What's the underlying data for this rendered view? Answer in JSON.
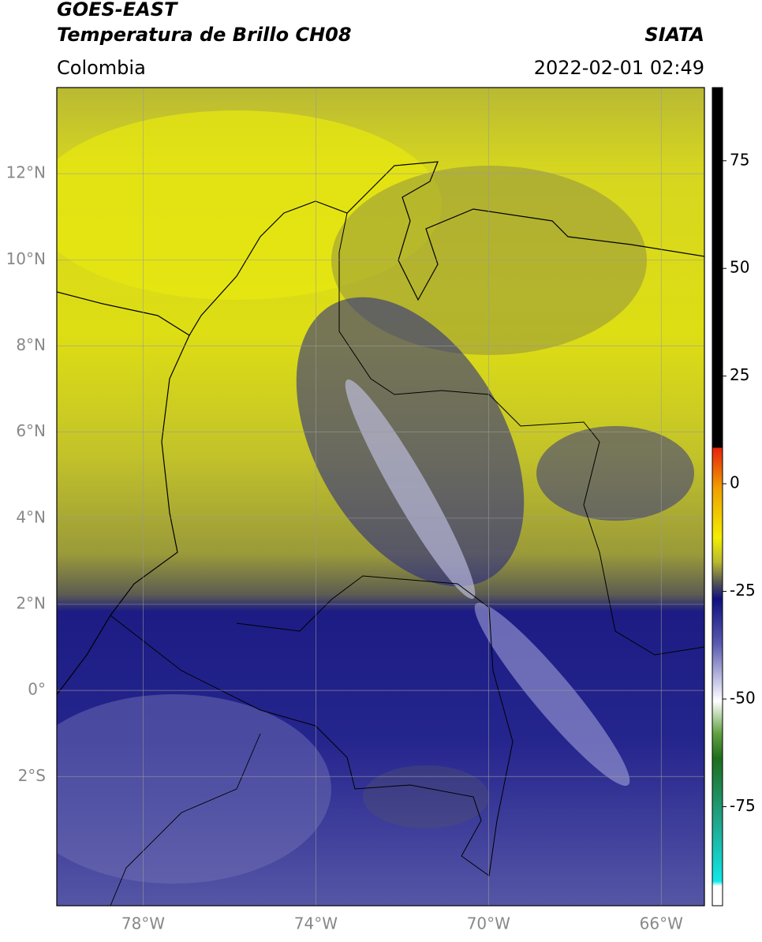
{
  "header": {
    "title": "GOES-EAST",
    "subtitle": "Temperatura de Brillo CH08",
    "source": "SIATA",
    "region": "Colombia",
    "datetime": "2022-02-01 02:49"
  },
  "map": {
    "xlim": [
      -80,
      -65
    ],
    "ylim": [
      -5,
      14
    ],
    "xticks": [
      {
        "value": -78,
        "label": "78°W"
      },
      {
        "value": -74,
        "label": "74°W"
      },
      {
        "value": -70,
        "label": "70°W"
      },
      {
        "value": -66,
        "label": "66°W"
      }
    ],
    "yticks": [
      {
        "value": 12,
        "label": "12°N"
      },
      {
        "value": 10,
        "label": "10°N"
      },
      {
        "value": 8,
        "label": "8°N"
      },
      {
        "value": 6,
        "label": "6°N"
      },
      {
        "value": 4,
        "label": "4°N"
      },
      {
        "value": 2,
        "label": "2°N"
      },
      {
        "value": 0,
        "label": "0°"
      },
      {
        "value": -2,
        "label": "2°S"
      }
    ],
    "grid": true
  },
  "colorbar": {
    "clim": [
      -98,
      92
    ],
    "ticks": [
      75,
      50,
      25,
      0,
      -25,
      -50,
      -75
    ]
  }
}
